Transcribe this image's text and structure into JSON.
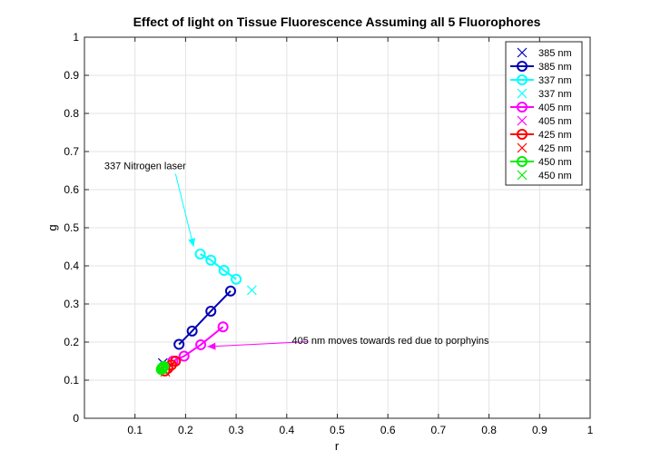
{
  "chart_data": {
    "type": "line",
    "title": "Effect of light on Tissue Fluorescence Assuming all 5  Fluorophores",
    "xlabel": "r",
    "ylabel": "g",
    "xlim": [
      0,
      1
    ],
    "ylim": [
      0,
      1
    ],
    "grid": true,
    "xticks": [
      0.1,
      0.2,
      0.3,
      0.4,
      0.5,
      0.6,
      0.7,
      0.8,
      0.9,
      1
    ],
    "xtick_labels": [
      "0.1",
      "0.2",
      "0.3",
      "0.4",
      "0.5",
      "0.6",
      "0.7",
      "0.8",
      "0.9",
      "1"
    ],
    "yticks": [
      0,
      0.1,
      0.2,
      0.3,
      0.4,
      0.5,
      0.6,
      0.7,
      0.8,
      0.9,
      1
    ],
    "ytick_labels": [
      "0",
      "0.1",
      "0.2",
      "0.3",
      "0.4",
      "0.5",
      "0.6",
      "0.7",
      "0.8",
      "0.9",
      "1"
    ],
    "legend_position": "top-right",
    "series": [
      {
        "name": "385 nm",
        "style": "x",
        "color": "#0000b3",
        "x": [
          0.155
        ],
        "y": [
          0.145
        ]
      },
      {
        "name": "385 nm",
        "style": "line-o",
        "color": "#0000b3",
        "x": [
          0.187,
          0.213,
          0.25,
          0.289
        ],
        "y": [
          0.194,
          0.229,
          0.281,
          0.334
        ]
      },
      {
        "name": "337 nm",
        "style": "line-o",
        "color": "#00ffff",
        "x": [
          0.229,
          0.25,
          0.276,
          0.3
        ],
        "y": [
          0.431,
          0.415,
          0.388,
          0.365
        ]
      },
      {
        "name": "337 nm",
        "style": "x",
        "color": "#00ffff",
        "x": [
          0.331
        ],
        "y": [
          0.336
        ]
      },
      {
        "name": "405 nm",
        "style": "line-o",
        "color": "#ff00ff",
        "x": [
          0.175,
          0.197,
          0.23,
          0.274
        ],
        "y": [
          0.15,
          0.163,
          0.193,
          0.24
        ]
      },
      {
        "name": "405 nm",
        "style": "x",
        "color": "#ff00ff",
        "x": [
          0.163
        ],
        "y": [
          0.133
        ]
      },
      {
        "name": "425 nm",
        "style": "line-o",
        "color": "#ff0000",
        "x": [
          0.159,
          0.165,
          0.172,
          0.18
        ],
        "y": [
          0.124,
          0.131,
          0.14,
          0.15
        ]
      },
      {
        "name": "425 nm",
        "style": "x",
        "color": "#ff0000",
        "x": [
          0.16
        ],
        "y": [
          0.122
        ]
      },
      {
        "name": "450 nm",
        "style": "line-o",
        "color": "#00ee00",
        "x": [
          0.152,
          0.153,
          0.155,
          0.157
        ],
        "y": [
          0.128,
          0.131,
          0.133,
          0.136
        ]
      },
      {
        "name": "450 nm",
        "style": "x",
        "color": "#00ee00",
        "x": [
          0.156
        ],
        "y": [
          0.13
        ]
      }
    ],
    "annotations": [
      {
        "text": "337 Nitrogen laser",
        "text_x": 0.12,
        "text_y": 0.654,
        "arrow_from": [
          0.18,
          0.642
        ],
        "arrow_to": [
          0.216,
          0.45
        ],
        "color": "#00ffff"
      },
      {
        "text": "405 nm moves towards red due to porphyins",
        "text_x": 0.605,
        "text_y": 0.195,
        "arrow_from": [
          0.44,
          0.201
        ],
        "arrow_to": [
          0.243,
          0.188
        ],
        "color": "#ff00ff"
      }
    ]
  }
}
